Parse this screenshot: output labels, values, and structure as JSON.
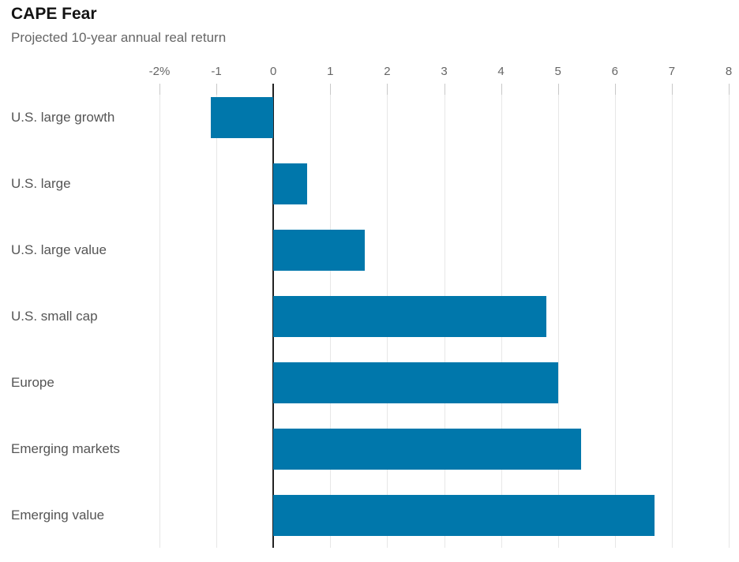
{
  "header": {
    "title": "CAPE Fear",
    "subtitle": "Projected 10-year annual real return"
  },
  "chart_data": {
    "type": "bar",
    "orientation": "horizontal",
    "title": "CAPE Fear",
    "subtitle": "Projected 10-year annual real return",
    "categories": [
      "U.S. large growth",
      "U.S. large",
      "U.S. large value",
      "U.S. small cap",
      "Europe",
      "Emerging markets",
      "Emerging value"
    ],
    "values": [
      -1.1,
      0.6,
      1.6,
      4.8,
      5.0,
      5.4,
      6.7
    ],
    "xlabel": "",
    "ylabel": "",
    "xlim": [
      -2,
      8
    ],
    "xticks": [
      -2,
      -1,
      0,
      1,
      2,
      3,
      4,
      5,
      6,
      7,
      8
    ],
    "xtick_labels": [
      "-2%",
      "-1",
      "0",
      "1",
      "2",
      "3",
      "4",
      "5",
      "6",
      "7",
      "8"
    ],
    "unit": "percent",
    "grid": "vertical",
    "legend": "none",
    "colors": {
      "bar": "#0077ab",
      "zero_axis": "#222222",
      "gridline": "#e7e7e7",
      "tick_stub": "#c8c8c8",
      "tick_label": "#666666",
      "category_label": "#555555"
    }
  }
}
